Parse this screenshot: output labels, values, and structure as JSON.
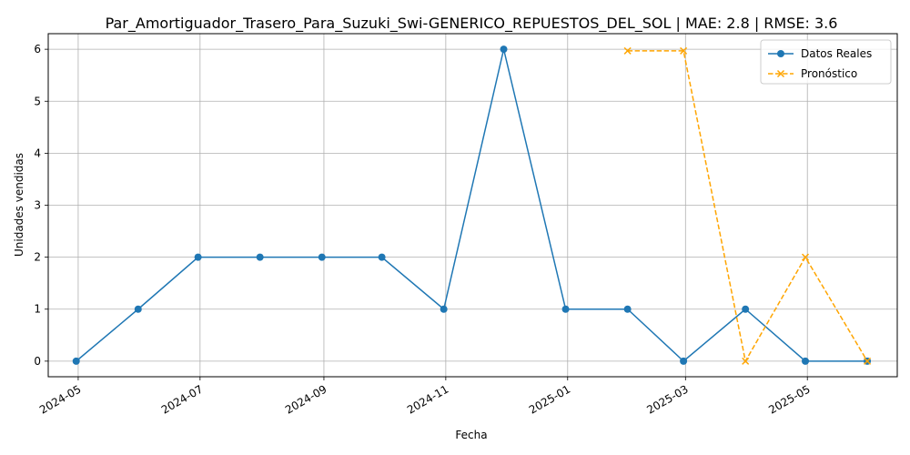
{
  "chart_data": {
    "type": "line",
    "title": "Par_Amortiguador_Trasero_Para_Suzuki_Swi-GENERICO_REPUESTOS_DEL_SOL | MAE: 2.8 | RMSE: 3.6",
    "xlabel": "Fecha",
    "ylabel": "Unidades vendidas",
    "x_ticks": [
      "2024-05",
      "2024-07",
      "2024-09",
      "2024-11",
      "2025-01",
      "2025-03",
      "2025-05"
    ],
    "y_ticks": [
      0,
      1,
      2,
      3,
      4,
      5,
      6
    ],
    "xlim": [
      "2024-04-16",
      "2025-06-15"
    ],
    "ylim": [
      -0.3,
      6.3
    ],
    "grid": true,
    "legend_position": "top-right",
    "series": [
      {
        "name": "Datos Reales",
        "color": "#1f77b4",
        "style": "solid",
        "marker": "circle",
        "x": [
          "2024-04-30",
          "2024-05-31",
          "2024-06-30",
          "2024-07-31",
          "2024-08-31",
          "2024-09-30",
          "2024-10-31",
          "2024-11-30",
          "2024-12-31",
          "2025-01-31",
          "2025-02-28",
          "2025-03-31",
          "2025-04-30",
          "2025-05-31"
        ],
        "values": [
          0,
          1,
          2,
          2,
          2,
          2,
          1,
          6,
          1,
          1,
          0,
          1,
          0,
          0
        ]
      },
      {
        "name": "Pronóstico",
        "color": "#ffa500",
        "style": "dashed",
        "marker": "x",
        "x": [
          "2025-01-31",
          "2025-02-28",
          "2025-03-31",
          "2025-04-30",
          "2025-05-31"
        ],
        "values": [
          5.97,
          5.97,
          0,
          2,
          0
        ]
      }
    ]
  }
}
